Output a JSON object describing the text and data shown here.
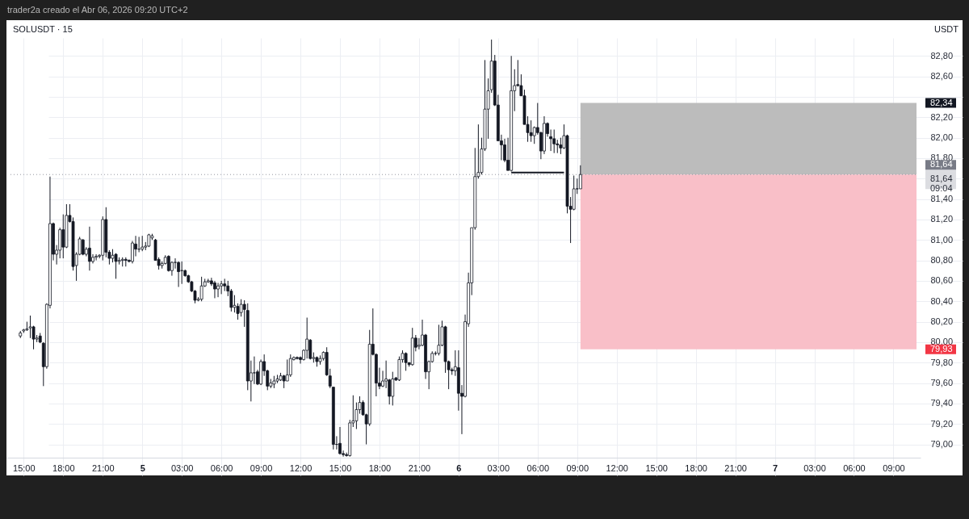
{
  "chart_data": {
    "type": "candlestick",
    "title": "SOLUSDT · 15",
    "ylabel": "USDT",
    "color": "#131722",
    "x": [
      "2026-04-04T14:45",
      "2026-04-04T15:00",
      "2026-04-04T15:15",
      "2026-04-04T15:30",
      "2026-04-04T15:45",
      "2026-04-04T16:00",
      "2026-04-04T16:15",
      "2026-04-04T16:30",
      "2026-04-04T16:45",
      "2026-04-04T17:00",
      "2026-04-04T17:15",
      "2026-04-04T17:30",
      "2026-04-04T17:45",
      "2026-04-04T18:00",
      "2026-04-04T18:15",
      "2026-04-04T18:30",
      "2026-04-04T18:45",
      "2026-04-04T19:00",
      "2026-04-04T19:15",
      "2026-04-04T19:30",
      "2026-04-04T19:45",
      "2026-04-04T20:00",
      "2026-04-04T20:15",
      "2026-04-04T20:30",
      "2026-04-04T20:45",
      "2026-04-04T21:00",
      "2026-04-04T21:15",
      "2026-04-04T21:30",
      "2026-04-04T21:45",
      "2026-04-04T22:00",
      "2026-04-04T22:15",
      "2026-04-04T22:30",
      "2026-04-04T22:45",
      "2026-04-04T23:00",
      "2026-04-04T23:15",
      "2026-04-04T23:30",
      "2026-04-04T23:45",
      "2026-04-05T00:00",
      "2026-04-05T00:15",
      "2026-04-05T00:30",
      "2026-04-05T00:45",
      "2026-04-05T01:00",
      "2026-04-05T01:15",
      "2026-04-05T01:30",
      "2026-04-05T01:45",
      "2026-04-05T02:00",
      "2026-04-05T02:15",
      "2026-04-05T02:30",
      "2026-04-05T02:45",
      "2026-04-05T03:00",
      "2026-04-05T03:15",
      "2026-04-05T03:30",
      "2026-04-05T03:45",
      "2026-04-05T04:00",
      "2026-04-05T04:15",
      "2026-04-05T04:30",
      "2026-04-05T04:45",
      "2026-04-05T05:00",
      "2026-04-05T05:15",
      "2026-04-05T05:30",
      "2026-04-05T05:45",
      "2026-04-05T06:00",
      "2026-04-05T06:15",
      "2026-04-05T06:30",
      "2026-04-05T06:45",
      "2026-04-05T07:00",
      "2026-04-05T07:15",
      "2026-04-05T07:30",
      "2026-04-05T07:45",
      "2026-04-05T08:00",
      "2026-04-05T08:15",
      "2026-04-05T08:30",
      "2026-04-05T08:45",
      "2026-04-05T09:00",
      "2026-04-05T09:15",
      "2026-04-05T09:30",
      "2026-04-05T09:45",
      "2026-04-05T10:00",
      "2026-04-05T10:15",
      "2026-04-05T10:30",
      "2026-04-05T10:45",
      "2026-04-05T11:00",
      "2026-04-05T11:15",
      "2026-04-05T11:30",
      "2026-04-05T11:45",
      "2026-04-05T12:00",
      "2026-04-05T12:15",
      "2026-04-05T12:30",
      "2026-04-05T12:45",
      "2026-04-05T13:00",
      "2026-04-05T13:15",
      "2026-04-05T13:30",
      "2026-04-05T13:45",
      "2026-04-05T14:00",
      "2026-04-05T14:15",
      "2026-04-05T14:30",
      "2026-04-05T14:45",
      "2026-04-05T15:00",
      "2026-04-05T15:15",
      "2026-04-05T15:30",
      "2026-04-05T15:45",
      "2026-04-05T16:00",
      "2026-04-05T16:15",
      "2026-04-05T16:30",
      "2026-04-05T16:45",
      "2026-04-05T17:00",
      "2026-04-05T17:15",
      "2026-04-05T17:30",
      "2026-04-05T17:45",
      "2026-04-05T18:00",
      "2026-04-05T18:15",
      "2026-04-05T18:30",
      "2026-04-05T18:45",
      "2026-04-05T19:00",
      "2026-04-05T19:15",
      "2026-04-05T19:30",
      "2026-04-05T19:45",
      "2026-04-05T20:00",
      "2026-04-05T20:15",
      "2026-04-05T20:30",
      "2026-04-05T20:45",
      "2026-04-05T21:00",
      "2026-04-05T21:15",
      "2026-04-05T21:30",
      "2026-04-05T21:45",
      "2026-04-05T22:00",
      "2026-04-05T22:15",
      "2026-04-05T22:30",
      "2026-04-05T22:45",
      "2026-04-05T23:00",
      "2026-04-05T23:15",
      "2026-04-05T23:30",
      "2026-04-05T23:45",
      "2026-04-06T00:00",
      "2026-04-06T00:15",
      "2026-04-06T00:30",
      "2026-04-06T00:45",
      "2026-04-06T01:00",
      "2026-04-06T01:15",
      "2026-04-06T01:30",
      "2026-04-06T01:45",
      "2026-04-06T02:00",
      "2026-04-06T02:15",
      "2026-04-06T02:30",
      "2026-04-06T02:45",
      "2026-04-06T03:00",
      "2026-04-06T03:15",
      "2026-04-06T03:30",
      "2026-04-06T03:45",
      "2026-04-06T04:00",
      "2026-04-06T04:15",
      "2026-04-06T04:30",
      "2026-04-06T04:45",
      "2026-04-06T05:00",
      "2026-04-06T05:15",
      "2026-04-06T05:30",
      "2026-04-06T05:45",
      "2026-04-06T06:00",
      "2026-04-06T06:15",
      "2026-04-06T06:30",
      "2026-04-06T06:45",
      "2026-04-06T07:00",
      "2026-04-06T07:15",
      "2026-04-06T07:30",
      "2026-04-06T07:45",
      "2026-04-06T08:00",
      "2026-04-06T08:15",
      "2026-04-06T08:30",
      "2026-04-06T08:45",
      "2026-04-06T09:00",
      "2026-04-06T09:15"
    ],
    "ohlc": [
      [
        80.06,
        80.11,
        80.04,
        80.09
      ],
      [
        80.11,
        80.13,
        80.09,
        80.12
      ],
      [
        80.12,
        80.2,
        80.11,
        80.13
      ],
      [
        80.14,
        80.26,
        80.04,
        80.15
      ],
      [
        80.15,
        80.16,
        79.93,
        80.03
      ],
      [
        80.03,
        80.07,
        80.0,
        80.04
      ],
      [
        80.06,
        80.09,
        79.99,
        80.0
      ],
      [
        79.99,
        80.0,
        79.57,
        79.76
      ],
      [
        79.76,
        80.38,
        79.74,
        80.37
      ],
      [
        80.36,
        81.62,
        80.33,
        81.16
      ],
      [
        81.16,
        81.17,
        80.8,
        80.86
      ],
      [
        80.86,
        80.95,
        80.76,
        80.9
      ],
      [
        80.9,
        81.12,
        80.82,
        81.1
      ],
      [
        81.1,
        81.25,
        80.82,
        80.93
      ],
      [
        80.93,
        81.35,
        80.92,
        81.24
      ],
      [
        81.24,
        81.35,
        81.17,
        81.18
      ],
      [
        81.18,
        81.22,
        80.7,
        80.74
      ],
      [
        80.75,
        80.88,
        80.6,
        80.86
      ],
      [
        80.86,
        81.03,
        80.85,
        81.01
      ],
      [
        81.0,
        81.01,
        80.85,
        80.86
      ],
      [
        80.86,
        80.93,
        80.84,
        80.91
      ],
      [
        80.92,
        81.13,
        80.7,
        80.79
      ],
      [
        80.79,
        80.86,
        80.77,
        80.83
      ],
      [
        80.83,
        80.86,
        80.8,
        80.84
      ],
      [
        80.84,
        80.86,
        80.82,
        80.85
      ],
      [
        80.85,
        81.23,
        80.8,
        81.2
      ],
      [
        81.2,
        81.32,
        80.83,
        80.88
      ],
      [
        80.88,
        80.9,
        80.76,
        80.82
      ],
      [
        80.82,
        80.91,
        80.78,
        80.85
      ],
      [
        80.86,
        80.87,
        80.62,
        80.79
      ],
      [
        80.79,
        80.83,
        80.76,
        80.8
      ],
      [
        80.8,
        80.83,
        80.74,
        80.81
      ],
      [
        80.81,
        80.83,
        80.74,
        80.8
      ],
      [
        80.8,
        80.81,
        80.78,
        80.79
      ],
      [
        80.79,
        80.99,
        80.77,
        80.97
      ],
      [
        80.96,
        81.04,
        80.84,
        80.91
      ],
      [
        80.91,
        81.03,
        80.88,
        80.91
      ],
      [
        80.91,
        81.04,
        80.89,
        80.93
      ],
      [
        80.93,
        80.98,
        80.9,
        80.94
      ],
      [
        80.94,
        81.06,
        80.93,
        81.05
      ],
      [
        81.02,
        81.06,
        81.0,
        81.04
      ],
      [
        81.0,
        81.01,
        80.8,
        80.8
      ],
      [
        80.81,
        80.83,
        80.71,
        80.75
      ],
      [
        80.75,
        80.79,
        80.72,
        80.77
      ],
      [
        80.77,
        80.85,
        80.76,
        80.83
      ],
      [
        80.84,
        80.85,
        80.69,
        80.7
      ],
      [
        80.7,
        80.79,
        80.65,
        80.78
      ],
      [
        80.78,
        80.82,
        80.72,
        80.78
      ],
      [
        80.78,
        80.79,
        80.54,
        80.69
      ],
      [
        80.7,
        80.79,
        80.57,
        80.7
      ],
      [
        80.7,
        80.71,
        80.64,
        80.65
      ],
      [
        80.65,
        80.66,
        80.58,
        80.59
      ],
      [
        80.59,
        80.6,
        80.49,
        80.5
      ],
      [
        80.5,
        80.51,
        80.38,
        80.41
      ],
      [
        80.41,
        80.44,
        80.4,
        80.42
      ],
      [
        80.42,
        80.64,
        80.4,
        80.55
      ],
      [
        80.55,
        80.62,
        80.54,
        80.59
      ],
      [
        80.59,
        80.62,
        80.58,
        80.6
      ],
      [
        80.6,
        80.63,
        80.55,
        80.57
      ],
      [
        80.58,
        80.6,
        80.43,
        80.52
      ],
      [
        80.52,
        80.58,
        80.44,
        80.55
      ],
      [
        80.55,
        80.6,
        80.47,
        80.57
      ],
      [
        80.57,
        80.62,
        80.5,
        80.55
      ],
      [
        80.55,
        80.6,
        80.45,
        80.5
      ],
      [
        80.5,
        80.52,
        80.3,
        80.34
      ],
      [
        80.34,
        80.46,
        80.29,
        80.36
      ],
      [
        80.35,
        80.38,
        80.22,
        80.28
      ],
      [
        80.29,
        80.42,
        80.25,
        80.37
      ],
      [
        80.37,
        80.41,
        80.15,
        80.32
      ],
      [
        80.31,
        80.38,
        79.53,
        79.62
      ],
      [
        79.62,
        79.82,
        79.42,
        79.7
      ],
      [
        79.7,
        79.86,
        79.59,
        79.7
      ],
      [
        79.71,
        79.73,
        79.58,
        79.59
      ],
      [
        79.59,
        79.83,
        79.58,
        79.81
      ],
      [
        79.81,
        79.88,
        79.67,
        79.72
      ],
      [
        79.72,
        79.73,
        79.53,
        79.57
      ],
      [
        79.57,
        79.64,
        79.55,
        79.6
      ],
      [
        79.59,
        79.67,
        79.55,
        79.62
      ],
      [
        79.62,
        79.68,
        79.6,
        79.64
      ],
      [
        79.63,
        79.7,
        79.62,
        79.67
      ],
      [
        79.67,
        79.68,
        79.55,
        79.62
      ],
      [
        79.62,
        79.83,
        79.62,
        79.68
      ],
      [
        79.68,
        79.88,
        79.66,
        79.84
      ],
      [
        79.83,
        79.86,
        79.82,
        79.85
      ],
      [
        79.85,
        79.86,
        79.83,
        79.84
      ],
      [
        79.85,
        79.86,
        79.79,
        79.83
      ],
      [
        79.83,
        79.93,
        79.82,
        79.92
      ],
      [
        79.92,
        80.24,
        79.84,
        80.03
      ],
      [
        80.02,
        80.03,
        79.83,
        79.84
      ],
      [
        79.84,
        79.9,
        79.8,
        79.85
      ],
      [
        79.85,
        79.86,
        79.76,
        79.81
      ],
      [
        79.81,
        79.87,
        79.78,
        79.84
      ],
      [
        79.84,
        79.91,
        79.82,
        79.9
      ],
      [
        79.9,
        79.95,
        79.67,
        79.68
      ],
      [
        79.67,
        79.74,
        79.55,
        79.57
      ],
      [
        79.56,
        79.56,
        78.95,
        79.0
      ],
      [
        79.0,
        79.08,
        78.95,
        79.0
      ],
      [
        79.01,
        79.17,
        78.9,
        78.91
      ],
      [
        78.91,
        78.94,
        78.88,
        78.9
      ],
      [
        78.9,
        78.92,
        78.88,
        78.89
      ],
      [
        78.89,
        79.24,
        78.88,
        79.21
      ],
      [
        79.21,
        79.48,
        79.17,
        79.23
      ],
      [
        79.23,
        79.41,
        79.15,
        79.34
      ],
      [
        79.34,
        79.47,
        79.3,
        79.41
      ],
      [
        79.41,
        79.43,
        79.28,
        79.29
      ],
      [
        79.29,
        79.3,
        79.0,
        79.2
      ],
      [
        79.2,
        80.12,
        79.18,
        79.98
      ],
      [
        79.98,
        80.33,
        79.87,
        79.88
      ],
      [
        79.88,
        79.89,
        79.47,
        79.6
      ],
      [
        79.6,
        79.75,
        79.54,
        79.57
      ],
      [
        79.57,
        79.72,
        79.56,
        79.62
      ],
      [
        79.62,
        79.82,
        79.55,
        79.64
      ],
      [
        79.63,
        79.64,
        79.39,
        79.47
      ],
      [
        79.47,
        79.71,
        79.38,
        79.64
      ],
      [
        79.65,
        79.66,
        79.62,
        79.63
      ],
      [
        79.63,
        79.86,
        79.62,
        79.83
      ],
      [
        79.83,
        79.92,
        79.8,
        79.89
      ],
      [
        79.89,
        79.9,
        79.72,
        79.8
      ],
      [
        79.8,
        79.8,
        79.76,
        79.78
      ],
      [
        79.78,
        80.14,
        79.77,
        80.04
      ],
      [
        80.04,
        80.07,
        79.91,
        79.95
      ],
      [
        79.96,
        80.04,
        79.93,
        79.97
      ],
      [
        79.97,
        80.22,
        79.96,
        80.07
      ],
      [
        80.07,
        80.08,
        79.64,
        79.71
      ],
      [
        79.71,
        79.82,
        79.54,
        79.81
      ],
      [
        79.81,
        79.91,
        79.8,
        79.89
      ],
      [
        79.89,
        79.91,
        79.87,
        79.89
      ],
      [
        79.89,
        80.17,
        79.87,
        79.97
      ],
      [
        79.97,
        80.21,
        79.96,
        80.15
      ],
      [
        80.15,
        80.16,
        79.7,
        79.81
      ],
      [
        79.81,
        79.82,
        79.54,
        79.73
      ],
      [
        79.73,
        79.75,
        79.68,
        79.72
      ],
      [
        79.72,
        79.92,
        79.67,
        79.76
      ],
      [
        79.75,
        79.92,
        79.33,
        79.5
      ],
      [
        79.5,
        79.58,
        79.1,
        79.47
      ],
      [
        79.47,
        80.27,
        79.46,
        80.2
      ],
      [
        80.18,
        80.68,
        80.15,
        80.58
      ],
      [
        80.58,
        81.12,
        80.46,
        81.12
      ],
      [
        81.12,
        81.9,
        81.1,
        81.62
      ],
      [
        81.62,
        82.13,
        81.6,
        81.66
      ],
      [
        81.66,
        82.0,
        81.64,
        81.89
      ],
      [
        81.89,
        82.76,
        81.87,
        82.28
      ],
      [
        82.28,
        82.58,
        81.99,
        82.46
      ],
      [
        82.47,
        82.96,
        82.44,
        82.75
      ],
      [
        82.75,
        82.81,
        82.31,
        82.32
      ],
      [
        82.32,
        82.42,
        81.97,
        81.97
      ],
      [
        81.97,
        82.03,
        81.78,
        81.93
      ],
      [
        81.93,
        81.99,
        81.76,
        81.78
      ],
      [
        81.78,
        82.0,
        81.68,
        81.68
      ],
      [
        81.68,
        82.8,
        81.67,
        82.46
      ],
      [
        82.46,
        82.67,
        82.26,
        82.51
      ],
      [
        82.52,
        82.76,
        82.5,
        82.51
      ],
      [
        82.51,
        82.62,
        82.41,
        82.41
      ],
      [
        82.41,
        82.47,
        82.13,
        82.13
      ],
      [
        82.13,
        82.21,
        81.96,
        82.05
      ],
      [
        82.05,
        82.17,
        81.96,
        82.02
      ],
      [
        82.02,
        82.11,
        81.94,
        82.1
      ],
      [
        82.1,
        82.34,
        82.03,
        82.05
      ],
      [
        82.05,
        82.06,
        81.79,
        81.87
      ],
      [
        81.87,
        82.21,
        81.84,
        82.14
      ],
      [
        82.14,
        82.15,
        82.01,
        82.04
      ],
      [
        82.01,
        82.08,
        81.87,
        81.99
      ],
      [
        81.99,
        82.08,
        81.85,
        81.94
      ],
      [
        81.94,
        81.98,
        81.85,
        81.93
      ],
      [
        81.93,
        82.0,
        81.84,
        81.9
      ],
      [
        81.9,
        82.13,
        81.89,
        82.02
      ],
      [
        82.02,
        82.03,
        81.26,
        81.33
      ],
      [
        81.33,
        81.42,
        80.97,
        81.3
      ],
      [
        81.3,
        81.63,
        81.29,
        81.5
      ],
      [
        81.5,
        81.6,
        81.45,
        81.5
      ],
      [
        81.5,
        81.73,
        81.5,
        81.64
      ]
    ],
    "series": [
      {
        "type": "line",
        "color": "#131722",
        "x": [
          "2026-04-06T04:00",
          "2026-04-06T08:00"
        ],
        "values": [
          81.66,
          81.66
        ]
      }
    ],
    "xlim": [
      "2026-04-04T14:00",
      "2026-04-07T10:45"
    ],
    "xticks": [
      {
        "value": "2026-04-04T15:00",
        "label": "15:00"
      },
      {
        "value": "2026-04-04T18:00",
        "label": "18:00"
      },
      {
        "value": "2026-04-04T21:00",
        "label": "21:00"
      },
      {
        "value": "2026-04-05T00:00",
        "label": "5"
      },
      {
        "value": "2026-04-05T03:00",
        "label": "03:00"
      },
      {
        "value": "2026-04-05T06:00",
        "label": "06:00"
      },
      {
        "value": "2026-04-05T09:00",
        "label": "09:00"
      },
      {
        "value": "2026-04-05T12:00",
        "label": "12:00"
      },
      {
        "value": "2026-04-05T15:00",
        "label": "15:00"
      },
      {
        "value": "2026-04-05T18:00",
        "label": "18:00"
      },
      {
        "value": "2026-04-05T21:00",
        "label": "21:00"
      },
      {
        "value": "2026-04-06T00:00",
        "label": "6"
      },
      {
        "value": "2026-04-06T03:00",
        "label": "03:00"
      },
      {
        "value": "2026-04-06T06:00",
        "label": "06:00"
      },
      {
        "value": "2026-04-06T09:00",
        "label": "09:00"
      },
      {
        "value": "2026-04-06T12:00",
        "label": "12:00"
      },
      {
        "value": "2026-04-06T15:00",
        "label": "15:00"
      },
      {
        "value": "2026-04-06T18:00",
        "label": "18:00"
      },
      {
        "value": "2026-04-06T21:00",
        "label": "21:00"
      },
      {
        "value": "2026-04-07T00:00",
        "label": "7"
      },
      {
        "value": "2026-04-07T03:00",
        "label": "03:00"
      },
      {
        "value": "2026-04-07T06:00",
        "label": "06:00"
      },
      {
        "value": "2026-04-07T09:00",
        "label": "09:00"
      }
    ],
    "ylim": [
      78.87,
      83.15
    ],
    "yticks": [
      {
        "value": 79,
        "label": "79,00"
      },
      {
        "value": 79.2,
        "label": "79,20"
      },
      {
        "value": 79.4,
        "label": "79,40"
      },
      {
        "value": 79.6,
        "label": "79,60"
      },
      {
        "value": 79.8,
        "label": "79,80"
      },
      {
        "value": 80,
        "label": "80,00"
      },
      {
        "value": 80.2,
        "label": "80,20"
      },
      {
        "value": 80.4,
        "label": "80,40"
      },
      {
        "value": 80.6,
        "label": "80,60"
      },
      {
        "value": 80.8,
        "label": "80,80"
      },
      {
        "value": 81,
        "label": "81,00"
      },
      {
        "value": 81.2,
        "label": "81,20"
      },
      {
        "value": 81.4,
        "label": "81,40"
      },
      {
        "value": 81.6,
        "label": null
      },
      {
        "value": 81.8,
        "label": "81,80"
      },
      {
        "value": 82,
        "label": "82,00"
      },
      {
        "value": 82.2,
        "label": "82,20"
      },
      {
        "value": 82.4,
        "label": null
      },
      {
        "value": 82.6,
        "label": "82,60"
      },
      {
        "value": 82.8,
        "label": "82,80"
      }
    ],
    "grid": true,
    "bands": [
      {
        "axis": "y",
        "from": 81.64,
        "to": 82.34,
        "label": "82,34",
        "color": "#bcbcbc"
      },
      {
        "axis": "y",
        "from": 79.93,
        "to": 81.64,
        "label": "79,93",
        "color": "#f9bfc8"
      }
    ],
    "ref_lines": [
      {
        "axis": "y",
        "value": 81.64,
        "label": "81,64\n09:04",
        "color": "#9598a1",
        "line_style": "dotted"
      }
    ],
    "annotations": [
      "trader2a creado el Abr 06, 2026 09:20 UTC+2",
      "81,64"
    ]
  }
}
